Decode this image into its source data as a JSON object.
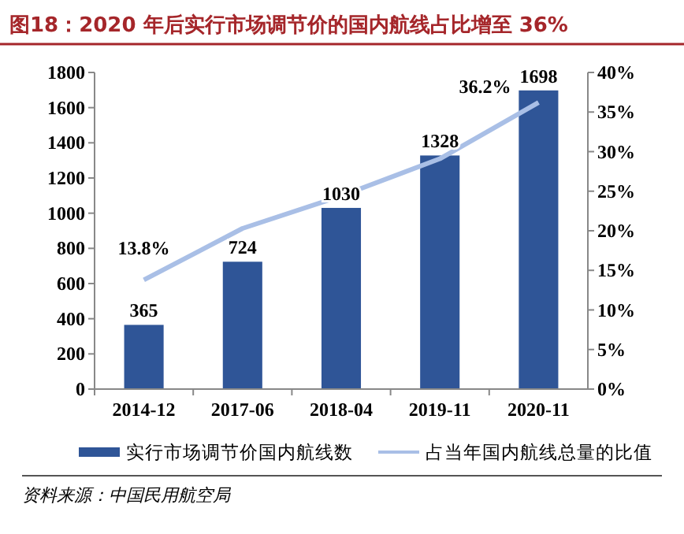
{
  "chart_data": {
    "type": "bar",
    "title": "图18：2020 年后实行市场调节价的国内航线占比增至 36%",
    "categories": [
      "2014-12",
      "2017-06",
      "2018-04",
      "2019-11",
      "2020-11"
    ],
    "series": [
      {
        "name": "实行市场调节价国内航线数",
        "color": "#2f5597",
        "values": [
          365,
          724,
          1030,
          1328,
          1698
        ]
      },
      {
        "name": "占当年国内航线总量的比值",
        "type": "line",
        "axis": "y2",
        "color": "#a9bfe6",
        "values": [
          13.8,
          20.3,
          24.4,
          29.1,
          36.2
        ],
        "value_labels": [
          "13.8%",
          null,
          null,
          null,
          "36.2%"
        ]
      }
    ],
    "data_labels": true,
    "ylim": [
      0,
      1800
    ],
    "yticks": [
      0,
      200,
      400,
      600,
      800,
      1000,
      1200,
      1400,
      1600,
      1800
    ],
    "y2lim": [
      0,
      40
    ],
    "y2ticks": [
      {
        "value": 0,
        "label": "0%"
      },
      {
        "value": 5,
        "label": "5%"
      },
      {
        "value": 10,
        "label": "10%"
      },
      {
        "value": 15,
        "label": "15%"
      },
      {
        "value": 20,
        "label": "20%"
      },
      {
        "value": 25,
        "label": "25%"
      },
      {
        "value": 30,
        "label": "30%"
      },
      {
        "value": 35,
        "label": "35%"
      },
      {
        "value": 40,
        "label": "40%"
      }
    ],
    "legend": "bottom",
    "grid": false,
    "annotations": [
      "资料来源：中国民用航空局"
    ]
  }
}
